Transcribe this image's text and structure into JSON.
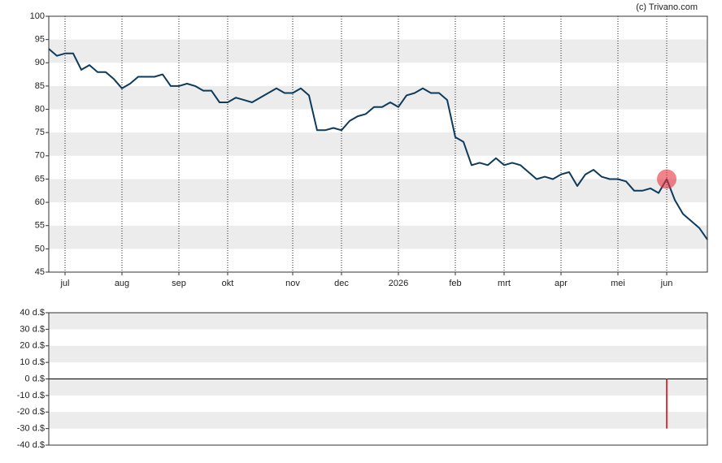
{
  "chart_data": [
    {
      "type": "line",
      "source": "(c) Trivano.com",
      "color": "#0e3a5c",
      "categories": [
        null,
        null,
        "jul",
        null,
        null,
        null,
        null,
        null,
        null,
        "aug",
        null,
        null,
        null,
        null,
        null,
        null,
        "sep",
        null,
        null,
        null,
        null,
        null,
        "okt",
        null,
        null,
        null,
        null,
        null,
        null,
        null,
        "nov",
        null,
        null,
        null,
        null,
        null,
        "dec",
        null,
        null,
        null,
        null,
        null,
        null,
        "2026",
        null,
        null,
        null,
        null,
        null,
        null,
        "feb",
        null,
        null,
        null,
        null,
        null,
        "mrt",
        null,
        null,
        null,
        null,
        null,
        null,
        "apr",
        null,
        null,
        null,
        null,
        null,
        null,
        "mei",
        null,
        null,
        null,
        null,
        null,
        "jun",
        null,
        null,
        null,
        null,
        null
      ],
      "values": [
        93,
        91.5,
        92,
        92,
        88.5,
        89.5,
        88,
        88,
        86.5,
        84.5,
        85.5,
        87,
        87,
        87,
        87.5,
        85,
        85,
        85.5,
        85,
        84,
        84,
        81.5,
        81.5,
        82.5,
        82,
        81.5,
        82.5,
        83.5,
        84.5,
        83.5,
        83.5,
        84.5,
        83,
        75.5,
        75.5,
        76,
        75.5,
        77.5,
        78.5,
        79,
        80.5,
        80.5,
        81.5,
        80.5,
        83,
        83.5,
        84.5,
        83.5,
        83.5,
        82,
        74,
        73,
        68,
        68.5,
        68,
        69.5,
        68,
        68.5,
        68,
        66.5,
        65,
        65.5,
        65,
        66,
        66.5,
        63.5,
        66,
        67,
        65.5,
        65,
        65,
        64.5,
        62.5,
        62.5,
        63,
        62,
        65,
        60.5,
        57.5,
        56,
        54.5,
        52
      ],
      "ylim": [
        45,
        100
      ],
      "yticks": [
        45,
        50,
        55,
        60,
        65,
        70,
        75,
        80,
        85,
        90,
        95,
        100
      ],
      "grid": true
    },
    {
      "type": "bar",
      "color": "#e8323c",
      "values": [
        null,
        null,
        null,
        null,
        null,
        null,
        null,
        null,
        null,
        null,
        null,
        null,
        null,
        null,
        null,
        null,
        null,
        null,
        null,
        null,
        null,
        null,
        null,
        null,
        null,
        null,
        null,
        null,
        null,
        null,
        null,
        null,
        null,
        null,
        null,
        null,
        null,
        null,
        null,
        null,
        null,
        null,
        null,
        null,
        null,
        null,
        null,
        null,
        null,
        null,
        null,
        null,
        null,
        null,
        null,
        null,
        null,
        null,
        null,
        null,
        null,
        null,
        null,
        null,
        null,
        null,
        null,
        null,
        null,
        null,
        null,
        null,
        null,
        null,
        null,
        null,
        -30,
        null,
        null,
        null,
        null,
        null
      ],
      "ylim": [
        -40,
        40
      ],
      "yticks": [
        {
          "value": -40,
          "label": "-40 d.$"
        },
        {
          "value": -30,
          "label": "-30 d.$"
        },
        {
          "value": -20,
          "label": "-20 d.$"
        },
        {
          "value": -10,
          "label": "-10 d.$"
        },
        {
          "value": 0,
          "label": "0 d.$"
        },
        {
          "value": 10,
          "label": "10 d.$"
        },
        {
          "value": 20,
          "label": "20 d.$"
        },
        {
          "value": 30,
          "label": "30 d.$"
        },
        {
          "value": 40,
          "label": "40 d.$"
        }
      ],
      "grid": true
    }
  ]
}
